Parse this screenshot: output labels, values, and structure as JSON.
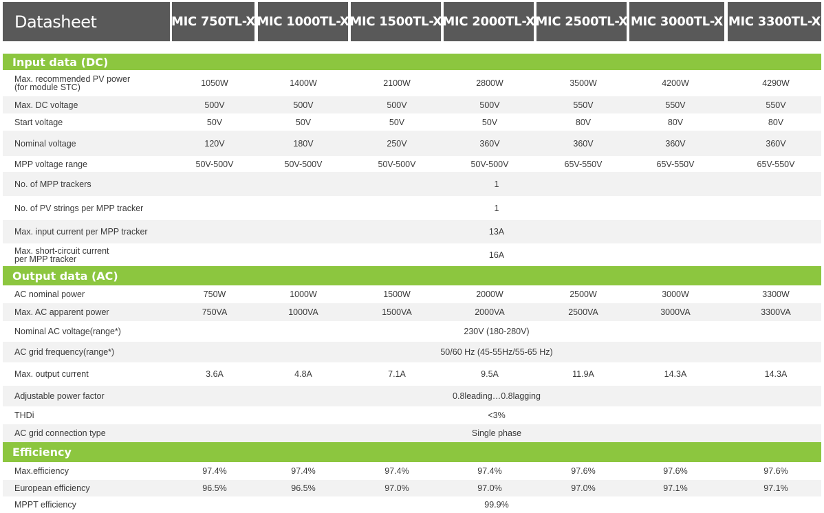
{
  "header": {
    "title": "Datasheet",
    "models": [
      "MIC 750TL-X",
      "MIC 1000TL-X",
      "MIC 1500TL-X",
      "MIC 2000TL-X",
      "MIC 2500TL-X",
      "MIC 3000TL-X",
      "MIC 3300TL-X"
    ]
  },
  "colors": {
    "header_bg": "#595959",
    "section_bg": "#8cc63f",
    "row_alt_bg": "#f2f2f2"
  },
  "sections": [
    {
      "title": "Input data (DC)",
      "rows": [
        {
          "label": [
            "Max. recommended PV power",
            "(for module STC)"
          ],
          "values": [
            "1050W",
            "1400W",
            "2100W",
            "2800W",
            "3500W",
            "4200W",
            "4290W"
          ]
        },
        {
          "label": [
            "Max. DC voltage"
          ],
          "values": [
            "500V",
            "500V",
            "500V",
            "500V",
            "550V",
            "550V",
            "550V"
          ]
        },
        {
          "label": [
            "Start voltage"
          ],
          "values": [
            "50V",
            "50V",
            "50V",
            "50V",
            "80V",
            "80V",
            "80V"
          ]
        },
        {
          "label": [
            "Nominal voltage"
          ],
          "values": [
            "120V",
            "180V",
            "250V",
            "360V",
            "360V",
            "360V",
            "360V"
          ]
        },
        {
          "label": [
            "MPP voltage range"
          ],
          "values": [
            "50V-500V",
            "50V-500V",
            "50V-500V",
            "50V-500V",
            "65V-550V",
            "65V-550V",
            "65V-550V"
          ]
        },
        {
          "label": [
            "No. of MPP trackers"
          ],
          "span": "1"
        },
        {
          "label": [
            "No. of PV strings per MPP tracker"
          ],
          "span": "1"
        },
        {
          "label": [
            "Max. input current per MPP tracker"
          ],
          "span": "13A"
        },
        {
          "label": [
            "Max. short-circuit current",
            "per MPP tracker"
          ],
          "span": "16A"
        }
      ]
    },
    {
      "title": "Output data (AC)",
      "rows": [
        {
          "label": [
            "AC nominal power"
          ],
          "values": [
            "750W",
            "1000W",
            "1500W",
            "2000W",
            "2500W",
            "3000W",
            "3300W"
          ]
        },
        {
          "label": [
            "Max. AC apparent power"
          ],
          "values": [
            "750VA",
            "1000VA",
            "1500VA",
            "2000VA",
            "2500VA",
            "3000VA",
            "3300VA"
          ]
        },
        {
          "label": [
            "Nominal AC voltage(range*)"
          ],
          "span": "230V (180-280V)"
        },
        {
          "label": [
            "AC grid frequency(range*)"
          ],
          "span": "50/60 Hz (45-55Hz/55-65 Hz)"
        },
        {
          "label": [
            "Max. output current"
          ],
          "values": [
            "3.6A",
            "4.8A",
            "7.1A",
            "9.5A",
            "11.9A",
            "14.3A",
            "14.3A"
          ]
        },
        {
          "label": [
            "Adjustable power factor"
          ],
          "span": "0.8leading…0.8lagging"
        },
        {
          "label": [
            "THDi"
          ],
          "span": "<3%"
        },
        {
          "label": [
            "AC grid connection type"
          ],
          "span": "Single phase"
        }
      ]
    },
    {
      "title": "Efficiency",
      "rows": [
        {
          "label": [
            "Max.efficiency"
          ],
          "values": [
            "97.4%",
            "97.4%",
            "97.4%",
            "97.4%",
            "97.6%",
            "97.6%",
            "97.6%"
          ]
        },
        {
          "label": [
            "European efficiency"
          ],
          "values": [
            "96.5%",
            "96.5%",
            "97.0%",
            "97.0%",
            "97.0%",
            "97.1%",
            "97.1%"
          ]
        },
        {
          "label": [
            "MPPT efficiency"
          ],
          "span": "99.9%"
        }
      ]
    }
  ]
}
